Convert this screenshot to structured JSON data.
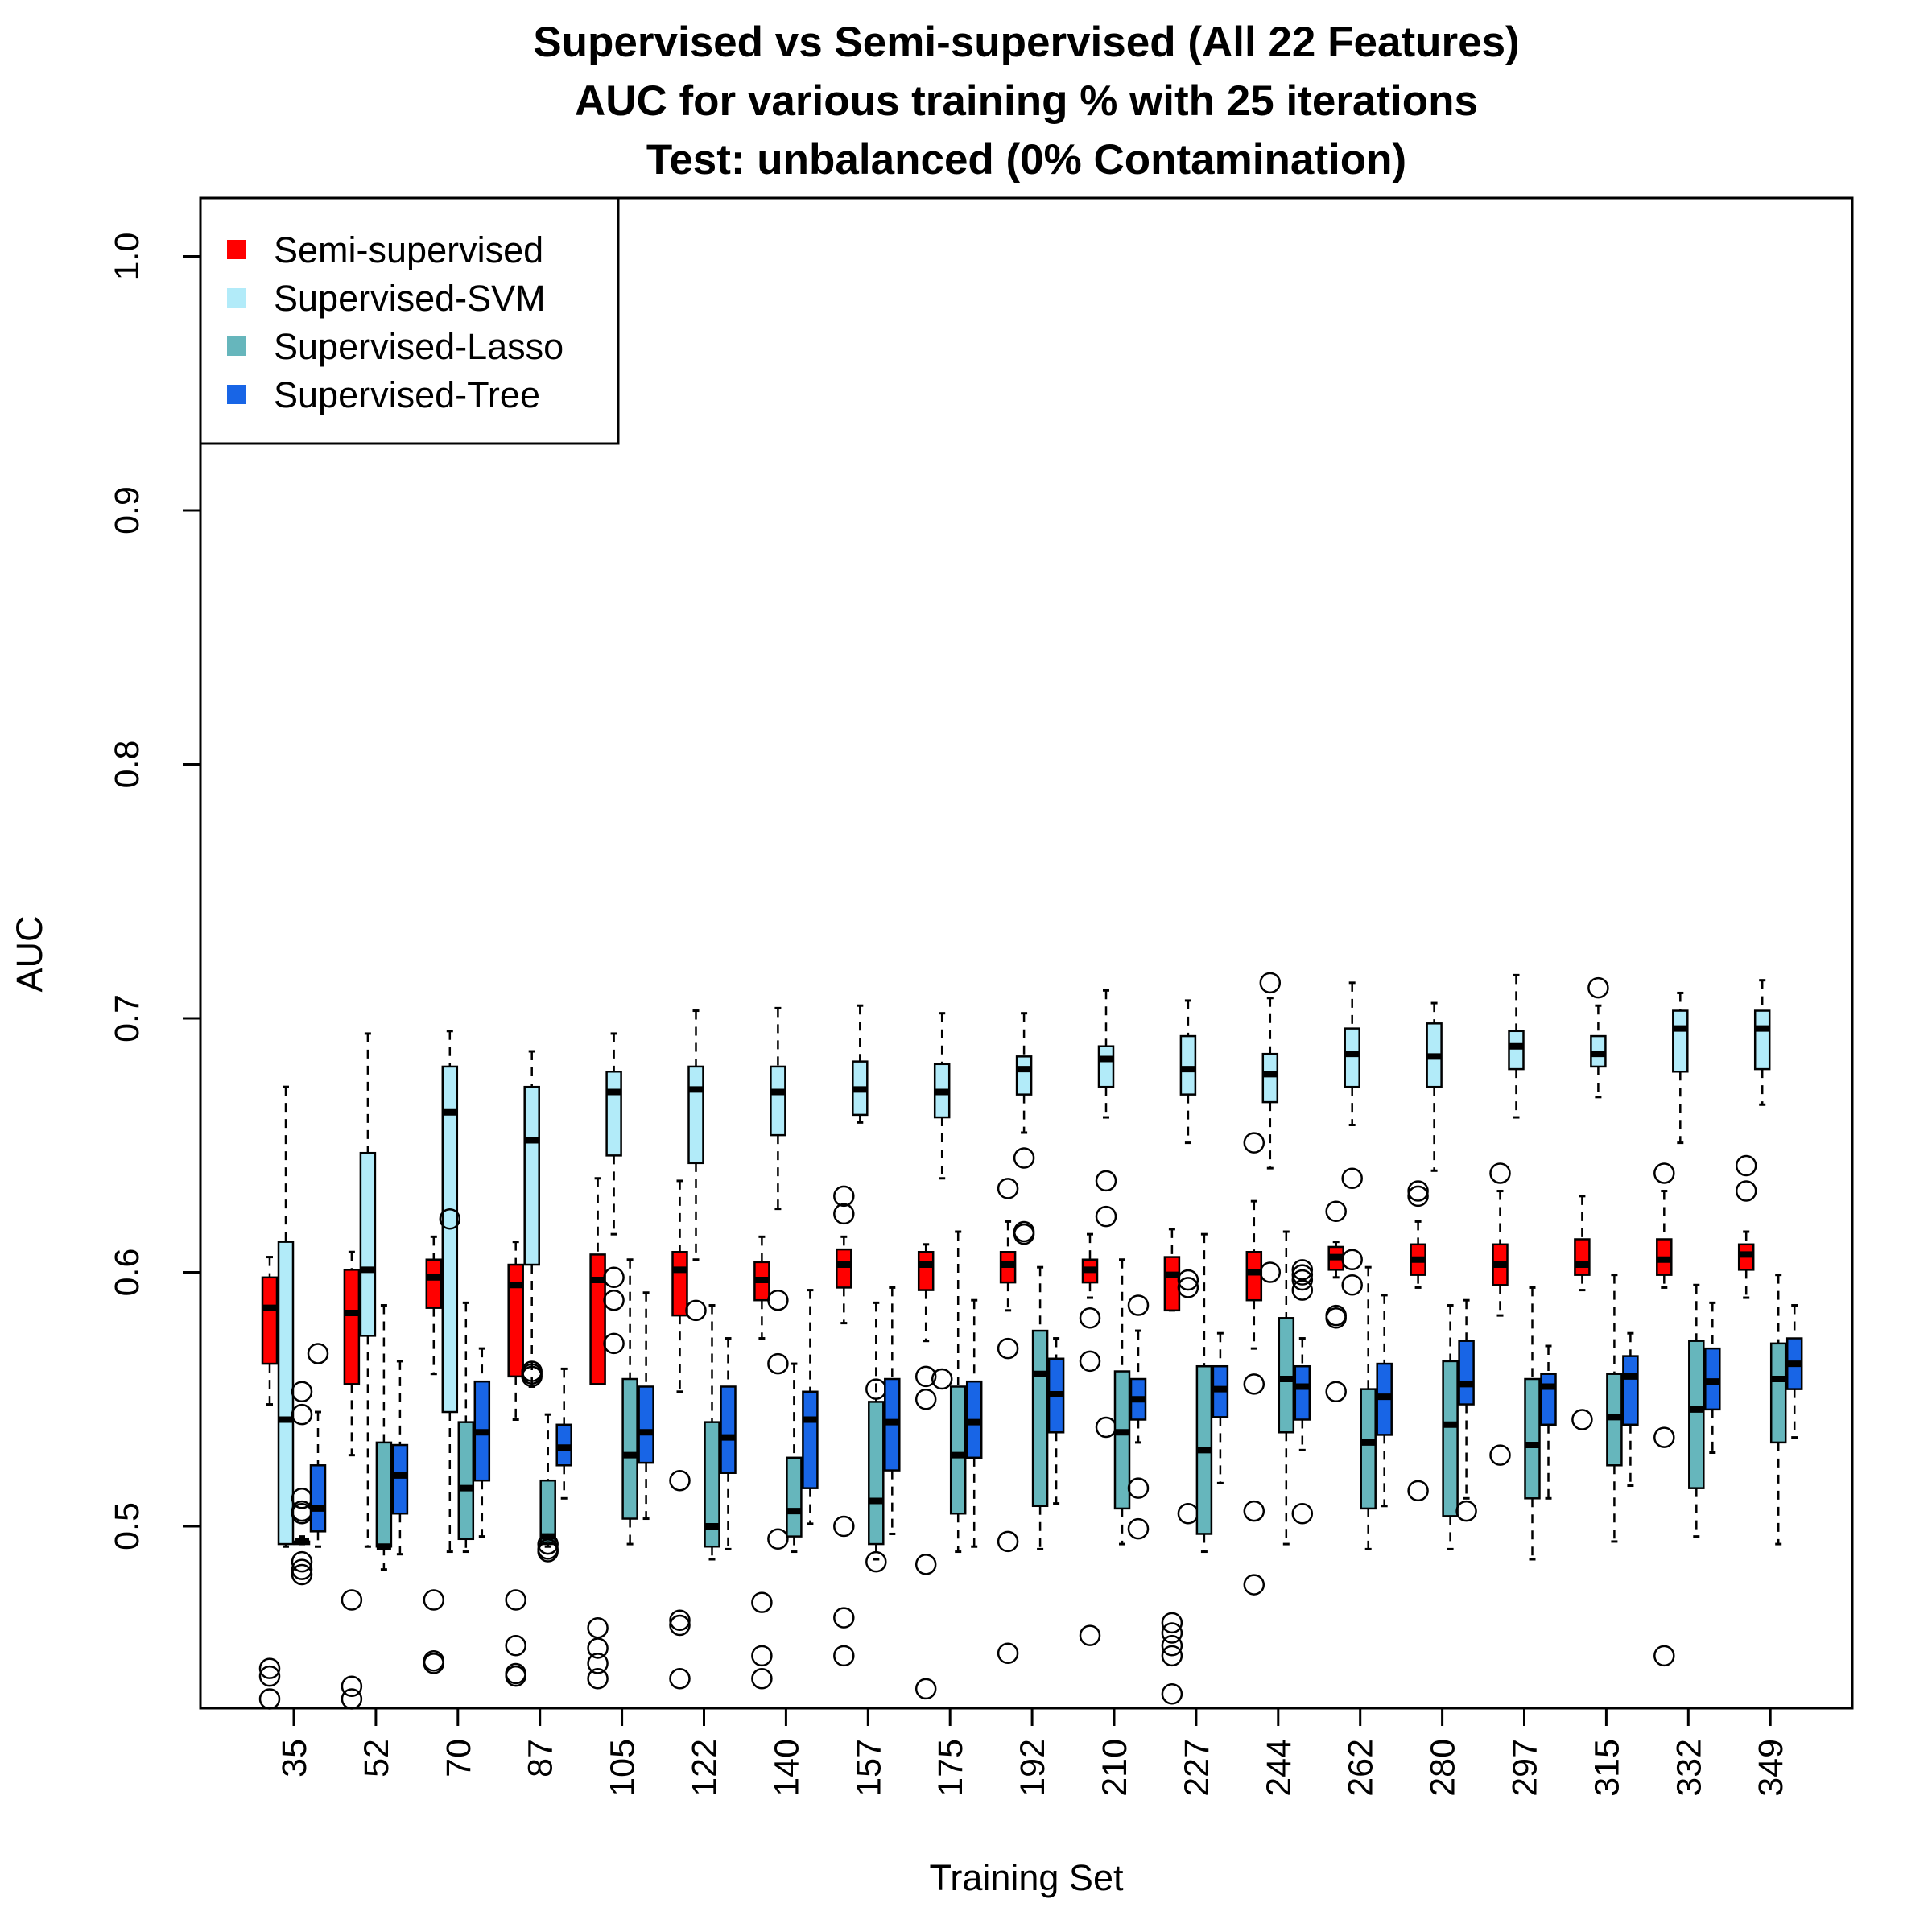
{
  "chart_data": {
    "type": "boxplot",
    "title": [
      "Supervised vs Semi-supervised (All 22 Features)",
      "AUC for various training % with 25 iterations",
      "Test: unbalanced (0% Contamination)"
    ],
    "xlabel": "Training Set",
    "ylabel": "AUC",
    "ylim": [
      0.43,
      1.02
    ],
    "yticks": [
      "0.5",
      "0.6",
      "0.7",
      "0.8",
      "0.9",
      "1.0"
    ],
    "grid": false,
    "legend_position": "top-left",
    "categories": [
      "35",
      "52",
      "70",
      "87",
      "105",
      "122",
      "140",
      "157",
      "175",
      "192",
      "210",
      "227",
      "244",
      "262",
      "280",
      "297",
      "315",
      "332",
      "349"
    ],
    "series": [
      {
        "name": "Semi-supervised",
        "color": "#ff0000",
        "boxes": [
          {
            "wlo": 0.548,
            "q1": 0.564,
            "med": 0.586,
            "q3": 0.598,
            "whi": 0.606,
            "out": [
              0.444,
              0.441,
              0.432
            ]
          },
          {
            "wlo": 0.528,
            "q1": 0.556,
            "med": 0.584,
            "q3": 0.601,
            "whi": 0.608,
            "out": [
              0.471,
              0.437,
              0.432
            ]
          },
          {
            "wlo": 0.56,
            "q1": 0.586,
            "med": 0.598,
            "q3": 0.605,
            "whi": 0.614,
            "out": [
              0.471,
              0.447,
              0.446
            ]
          },
          {
            "wlo": 0.542,
            "q1": 0.559,
            "med": 0.595,
            "q3": 0.603,
            "whi": 0.612,
            "out": [
              0.471,
              0.453,
              0.442,
              0.441
            ]
          },
          {
            "wlo": 0.556,
            "q1": 0.556,
            "med": 0.597,
            "q3": 0.607,
            "whi": 0.637,
            "out": [
              0.46,
              0.452,
              0.446,
              0.44
            ]
          },
          {
            "wlo": 0.553,
            "q1": 0.583,
            "med": 0.601,
            "q3": 0.608,
            "whi": 0.636,
            "out": [
              0.518,
              0.463,
              0.461,
              0.44
            ]
          },
          {
            "wlo": 0.574,
            "q1": 0.589,
            "med": 0.597,
            "q3": 0.604,
            "whi": 0.614,
            "out": [
              0.47,
              0.449,
              0.44
            ]
          },
          {
            "wlo": 0.58,
            "q1": 0.594,
            "med": 0.603,
            "q3": 0.609,
            "whi": 0.614,
            "out": [
              0.63,
              0.623,
              0.5,
              0.464,
              0.449
            ]
          },
          {
            "wlo": 0.573,
            "q1": 0.593,
            "med": 0.603,
            "q3": 0.608,
            "whi": 0.611,
            "out": [
              0.559,
              0.55,
              0.485,
              0.436
            ]
          },
          {
            "wlo": 0.585,
            "q1": 0.596,
            "med": 0.603,
            "q3": 0.608,
            "whi": 0.62,
            "out": [
              0.633,
              0.57,
              0.494,
              0.45
            ]
          },
          {
            "wlo": 0.59,
            "q1": 0.596,
            "med": 0.601,
            "q3": 0.605,
            "whi": 0.615,
            "out": [
              0.582,
              0.565,
              0.457
            ]
          },
          {
            "wlo": 0.585,
            "q1": 0.585,
            "med": 0.599,
            "q3": 0.606,
            "whi": 0.617,
            "out": [
              0.462,
              0.458,
              0.453,
              0.449,
              0.434
            ]
          },
          {
            "wlo": 0.57,
            "q1": 0.589,
            "med": 0.6,
            "q3": 0.608,
            "whi": 0.628,
            "out": [
              0.651,
              0.556,
              0.506,
              0.477
            ]
          },
          {
            "wlo": 0.598,
            "q1": 0.601,
            "med": 0.606,
            "q3": 0.61,
            "whi": 0.612,
            "out": [
              0.624,
              0.583,
              0.582,
              0.553
            ]
          },
          {
            "wlo": 0.594,
            "q1": 0.599,
            "med": 0.605,
            "q3": 0.611,
            "whi": 0.62,
            "out": [
              0.632,
              0.63,
              0.514
            ]
          },
          {
            "wlo": 0.583,
            "q1": 0.595,
            "med": 0.603,
            "q3": 0.611,
            "whi": 0.632,
            "out": [
              0.639,
              0.528
            ]
          },
          {
            "wlo": 0.593,
            "q1": 0.599,
            "med": 0.603,
            "q3": 0.613,
            "whi": 0.63,
            "out": [
              0.542
            ]
          },
          {
            "wlo": 0.594,
            "q1": 0.599,
            "med": 0.605,
            "q3": 0.613,
            "whi": 0.632,
            "out": [
              0.639,
              0.535,
              0.449
            ]
          },
          {
            "wlo": 0.59,
            "q1": 0.601,
            "med": 0.607,
            "q3": 0.611,
            "whi": 0.616,
            "out": [
              0.642,
              0.632
            ]
          }
        ]
      },
      {
        "name": "Supervised-SVM",
        "color": "#b2ebf9",
        "boxes": [
          {
            "wlo": 0.492,
            "q1": 0.493,
            "med": 0.542,
            "q3": 0.612,
            "whi": 0.673,
            "out": []
          },
          {
            "wlo": 0.492,
            "q1": 0.575,
            "med": 0.601,
            "q3": 0.647,
            "whi": 0.694,
            "out": []
          },
          {
            "wlo": 0.49,
            "q1": 0.545,
            "med": 0.663,
            "q3": 0.681,
            "whi": 0.695,
            "out": [
              0.621
            ]
          },
          {
            "wlo": 0.555,
            "q1": 0.603,
            "med": 0.652,
            "q3": 0.673,
            "whi": 0.687,
            "out": [
              0.561,
              0.56,
              0.559
            ]
          },
          {
            "wlo": 0.615,
            "q1": 0.646,
            "med": 0.671,
            "q3": 0.679,
            "whi": 0.694,
            "out": [
              0.598,
              0.589,
              0.572
            ]
          },
          {
            "wlo": 0.605,
            "q1": 0.643,
            "med": 0.672,
            "q3": 0.681,
            "whi": 0.703,
            "out": [
              0.585
            ]
          },
          {
            "wlo": 0.625,
            "q1": 0.654,
            "med": 0.671,
            "q3": 0.681,
            "whi": 0.704,
            "out": [
              0.589,
              0.564,
              0.495
            ]
          },
          {
            "wlo": 0.659,
            "q1": 0.662,
            "med": 0.672,
            "q3": 0.683,
            "whi": 0.705,
            "out": []
          },
          {
            "wlo": 0.637,
            "q1": 0.661,
            "med": 0.671,
            "q3": 0.682,
            "whi": 0.702,
            "out": [
              0.558
            ]
          },
          {
            "wlo": 0.655,
            "q1": 0.67,
            "med": 0.68,
            "q3": 0.685,
            "whi": 0.702,
            "out": [
              0.645,
              0.616,
              0.615
            ]
          },
          {
            "wlo": 0.661,
            "q1": 0.673,
            "med": 0.684,
            "q3": 0.689,
            "whi": 0.711,
            "out": [
              0.636,
              0.622,
              0.539
            ]
          },
          {
            "wlo": 0.651,
            "q1": 0.67,
            "med": 0.68,
            "q3": 0.693,
            "whi": 0.707,
            "out": [
              0.597,
              0.594,
              0.505
            ]
          },
          {
            "wlo": 0.641,
            "q1": 0.667,
            "med": 0.678,
            "q3": 0.686,
            "whi": 0.708,
            "out": [
              0.714,
              0.6
            ]
          },
          {
            "wlo": 0.658,
            "q1": 0.673,
            "med": 0.686,
            "q3": 0.696,
            "whi": 0.714,
            "out": [
              0.637,
              0.605,
              0.595
            ]
          },
          {
            "wlo": 0.64,
            "q1": 0.673,
            "med": 0.685,
            "q3": 0.698,
            "whi": 0.706,
            "out": []
          },
          {
            "wlo": 0.661,
            "q1": 0.68,
            "med": 0.689,
            "q3": 0.695,
            "whi": 0.717,
            "out": []
          },
          {
            "wlo": 0.669,
            "q1": 0.681,
            "med": 0.686,
            "q3": 0.693,
            "whi": 0.705,
            "out": [
              0.712
            ]
          },
          {
            "wlo": 0.651,
            "q1": 0.679,
            "med": 0.696,
            "q3": 0.703,
            "whi": 0.71,
            "out": []
          },
          {
            "wlo": 0.666,
            "q1": 0.68,
            "med": 0.696,
            "q3": 0.703,
            "whi": 0.715,
            "out": []
          }
        ]
      },
      {
        "name": "Supervised-Lasso",
        "color": "#66b6bc",
        "boxes": [
          {
            "wlo": 0.493,
            "q1": 0.493,
            "med": 0.494,
            "q3": 0.494,
            "whi": 0.496,
            "out": [
              0.553,
              0.544,
              0.511,
              0.506,
              0.505,
              0.486,
              0.483,
              0.481
            ]
          },
          {
            "wlo": 0.483,
            "q1": 0.492,
            "med": 0.492,
            "q3": 0.533,
            "whi": 0.587,
            "out": []
          },
          {
            "wlo": 0.49,
            "q1": 0.495,
            "med": 0.515,
            "q3": 0.541,
            "whi": 0.588,
            "out": []
          },
          {
            "wlo": 0.492,
            "q1": 0.493,
            "med": 0.496,
            "q3": 0.518,
            "whi": 0.544,
            "out": [
              0.493,
              0.491,
              0.49
            ]
          },
          {
            "wlo": 0.493,
            "q1": 0.503,
            "med": 0.528,
            "q3": 0.558,
            "whi": 0.605,
            "out": []
          },
          {
            "wlo": 0.487,
            "q1": 0.492,
            "med": 0.5,
            "q3": 0.541,
            "whi": 0.587,
            "out": []
          },
          {
            "wlo": 0.49,
            "q1": 0.496,
            "med": 0.506,
            "q3": 0.527,
            "whi": 0.564,
            "out": []
          },
          {
            "wlo": 0.487,
            "q1": 0.493,
            "med": 0.51,
            "q3": 0.549,
            "whi": 0.588,
            "out": [
              0.554,
              0.486
            ]
          },
          {
            "wlo": 0.49,
            "q1": 0.505,
            "med": 0.528,
            "q3": 0.555,
            "whi": 0.616,
            "out": []
          },
          {
            "wlo": 0.491,
            "q1": 0.508,
            "med": 0.56,
            "q3": 0.577,
            "whi": 0.602,
            "out": []
          },
          {
            "wlo": 0.493,
            "q1": 0.507,
            "med": 0.537,
            "q3": 0.561,
            "whi": 0.605,
            "out": []
          },
          {
            "wlo": 0.49,
            "q1": 0.497,
            "med": 0.53,
            "q3": 0.563,
            "whi": 0.615,
            "out": []
          },
          {
            "wlo": 0.493,
            "q1": 0.537,
            "med": 0.558,
            "q3": 0.582,
            "whi": 0.616,
            "out": []
          },
          {
            "wlo": 0.491,
            "q1": 0.507,
            "med": 0.533,
            "q3": 0.554,
            "whi": 0.602,
            "out": []
          },
          {
            "wlo": 0.491,
            "q1": 0.504,
            "med": 0.54,
            "q3": 0.565,
            "whi": 0.587,
            "out": []
          },
          {
            "wlo": 0.487,
            "q1": 0.511,
            "med": 0.532,
            "q3": 0.558,
            "whi": 0.594,
            "out": []
          },
          {
            "wlo": 0.494,
            "q1": 0.524,
            "med": 0.543,
            "q3": 0.56,
            "whi": 0.599,
            "out": []
          },
          {
            "wlo": 0.496,
            "q1": 0.515,
            "med": 0.546,
            "q3": 0.573,
            "whi": 0.595,
            "out": []
          },
          {
            "wlo": 0.493,
            "q1": 0.533,
            "med": 0.558,
            "q3": 0.572,
            "whi": 0.599,
            "out": []
          }
        ]
      },
      {
        "name": "Supervised-Tree",
        "color": "#1865e6",
        "boxes": [
          {
            "wlo": 0.492,
            "q1": 0.498,
            "med": 0.507,
            "q3": 0.524,
            "whi": 0.545,
            "out": [
              0.568
            ]
          },
          {
            "wlo": 0.489,
            "q1": 0.505,
            "med": 0.52,
            "q3": 0.532,
            "whi": 0.565,
            "out": []
          },
          {
            "wlo": 0.496,
            "q1": 0.518,
            "med": 0.537,
            "q3": 0.557,
            "whi": 0.57,
            "out": []
          },
          {
            "wlo": 0.511,
            "q1": 0.524,
            "med": 0.531,
            "q3": 0.54,
            "whi": 0.562,
            "out": []
          },
          {
            "wlo": 0.503,
            "q1": 0.525,
            "med": 0.537,
            "q3": 0.555,
            "whi": 0.592,
            "out": []
          },
          {
            "wlo": 0.491,
            "q1": 0.521,
            "med": 0.535,
            "q3": 0.555,
            "whi": 0.574,
            "out": []
          },
          {
            "wlo": 0.501,
            "q1": 0.515,
            "med": 0.542,
            "q3": 0.553,
            "whi": 0.593,
            "out": []
          },
          {
            "wlo": 0.497,
            "q1": 0.522,
            "med": 0.541,
            "q3": 0.558,
            "whi": 0.594,
            "out": []
          },
          {
            "wlo": 0.492,
            "q1": 0.527,
            "med": 0.541,
            "q3": 0.557,
            "whi": 0.589,
            "out": []
          },
          {
            "wlo": 0.509,
            "q1": 0.537,
            "med": 0.552,
            "q3": 0.566,
            "whi": 0.574,
            "out": []
          },
          {
            "wlo": 0.533,
            "q1": 0.542,
            "med": 0.55,
            "q3": 0.558,
            "whi": 0.577,
            "out": [
              0.587,
              0.515,
              0.499
            ]
          },
          {
            "wlo": 0.517,
            "q1": 0.543,
            "med": 0.554,
            "q3": 0.563,
            "whi": 0.576,
            "out": []
          },
          {
            "wlo": 0.53,
            "q1": 0.542,
            "med": 0.555,
            "q3": 0.563,
            "whi": 0.574,
            "out": [
              0.601,
              0.599,
              0.597,
              0.593,
              0.505
            ]
          },
          {
            "wlo": 0.508,
            "q1": 0.536,
            "med": 0.551,
            "q3": 0.564,
            "whi": 0.591,
            "out": []
          },
          {
            "wlo": 0.511,
            "q1": 0.548,
            "med": 0.556,
            "q3": 0.573,
            "whi": 0.589,
            "out": [
              0.506
            ]
          },
          {
            "wlo": 0.511,
            "q1": 0.54,
            "med": 0.555,
            "q3": 0.56,
            "whi": 0.571,
            "out": []
          },
          {
            "wlo": 0.516,
            "q1": 0.54,
            "med": 0.559,
            "q3": 0.567,
            "whi": 0.576,
            "out": []
          },
          {
            "wlo": 0.529,
            "q1": 0.546,
            "med": 0.557,
            "q3": 0.57,
            "whi": 0.588,
            "out": []
          },
          {
            "wlo": 0.535,
            "q1": 0.554,
            "med": 0.564,
            "q3": 0.574,
            "whi": 0.587,
            "out": []
          }
        ]
      }
    ]
  }
}
